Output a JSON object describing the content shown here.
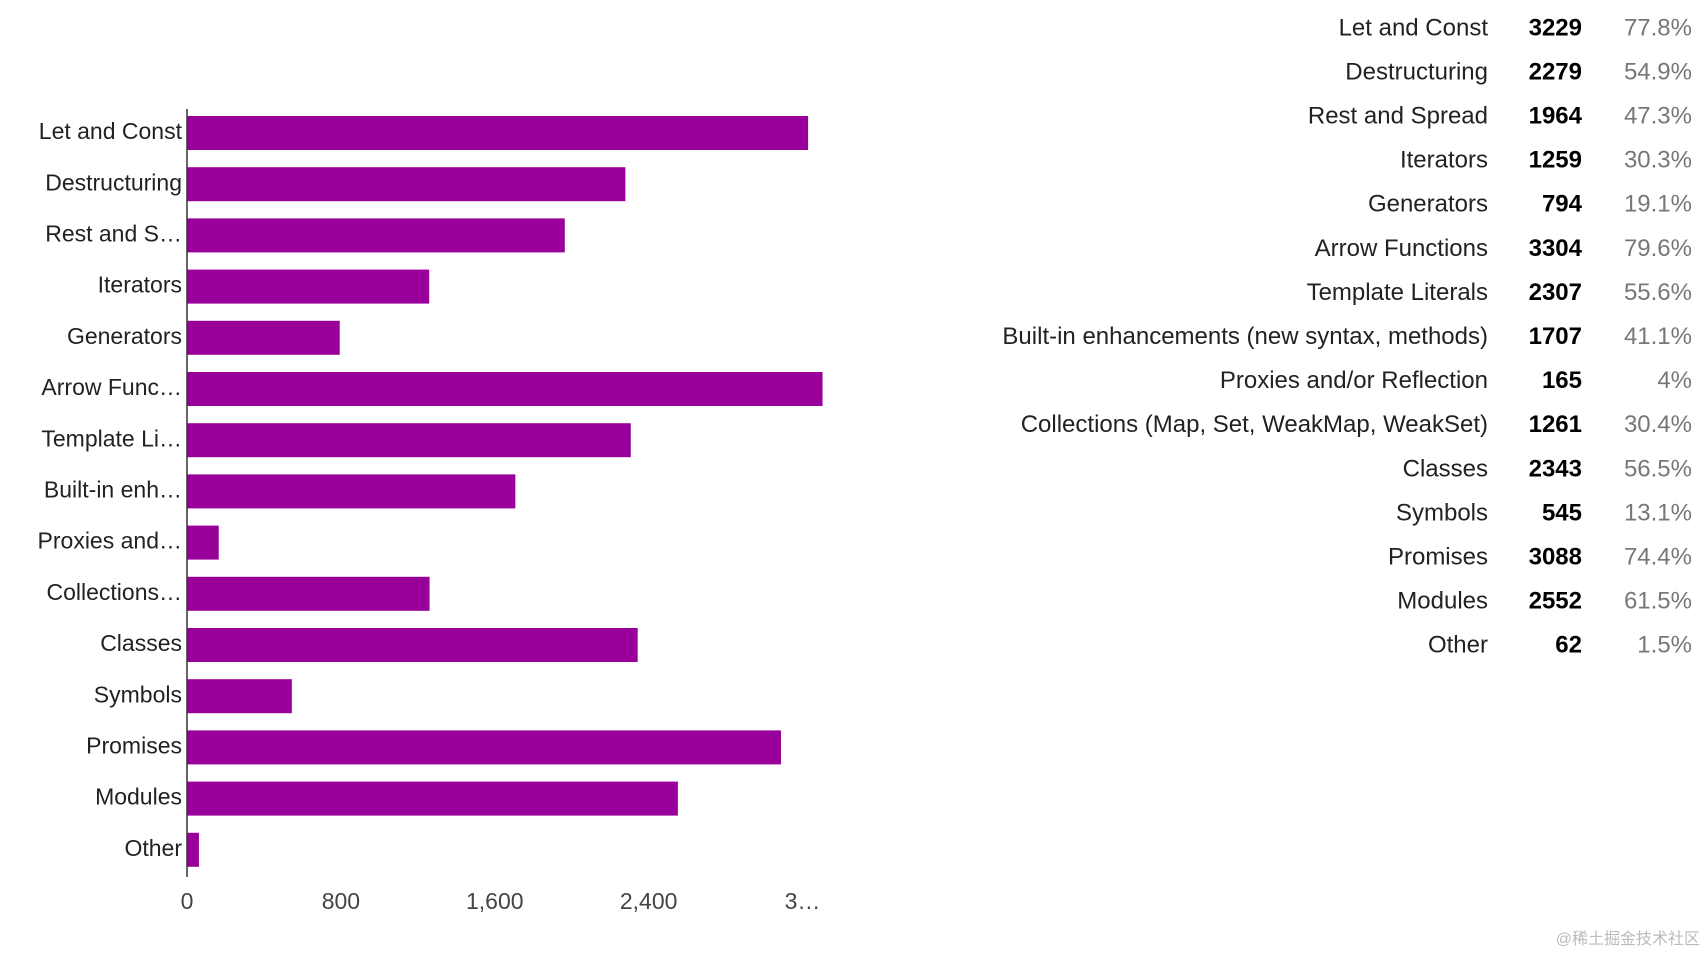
{
  "chart_data": {
    "type": "bar",
    "orientation": "horizontal",
    "categories": [
      "Let and Const",
      "Destructuring",
      "Rest and S…",
      "Iterators",
      "Generators",
      "Arrow Func…",
      "Template Li…",
      "Built-in enh…",
      "Proxies and…",
      "Collections…",
      "Classes",
      "Symbols",
      "Promises",
      "Modules",
      "Other"
    ],
    "values": [
      3229,
      2279,
      1964,
      1259,
      794,
      3304,
      2307,
      1707,
      165,
      1261,
      2343,
      545,
      3088,
      2552,
      62
    ],
    "color": "#990099",
    "xlim": [
      0,
      3400
    ],
    "xticks": [
      0,
      800,
      {
        "value": 1600,
        "label": "1,600"
      },
      {
        "value": 2400,
        "label": "2,400"
      },
      {
        "value": 3200,
        "label": "3…"
      }
    ],
    "grid": false
  },
  "table": {
    "names": [
      "Let and Const",
      "Destructuring",
      "Rest and Spread",
      "Iterators",
      "Generators",
      "Arrow Functions",
      "Template Literals",
      "Built-in enhancements (new syntax, methods)",
      "Proxies and/or Reflection",
      "Collections (Map, Set, WeakMap, WeakSet)",
      "Classes",
      "Symbols",
      "Promises",
      "Modules",
      "Other"
    ],
    "percents": [
      "77.8%",
      "54.9%",
      "47.3%",
      "30.3%",
      "19.1%",
      "79.6%",
      "55.6%",
      "41.1%",
      "4%",
      "30.4%",
      "56.5%",
      "13.1%",
      "74.4%",
      "61.5%",
      "1.5%"
    ]
  },
  "watermark": "@稀土掘金技术社区"
}
